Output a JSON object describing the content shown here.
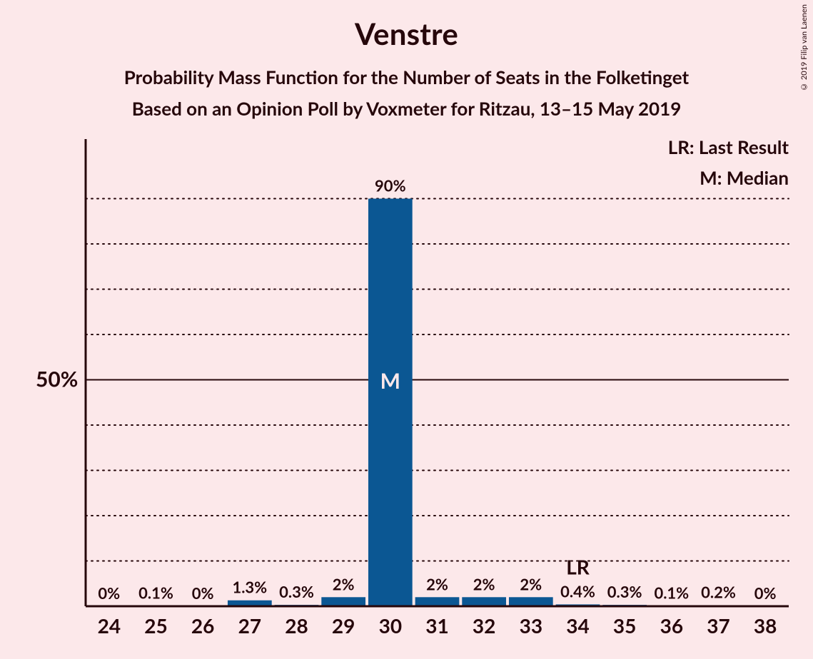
{
  "title": "Venstre",
  "subtitle1": "Probability Mass Function for the Number of Seats in the Folketinget",
  "subtitle2": "Based on an Opinion Poll by Voxmeter for Ritzau, 13–15 May 2019",
  "legend_lr": "LR: Last Result",
  "legend_m": "M: Median",
  "copyright": "© 2019 Filip van Laenen",
  "yaxis": {
    "major_label": "50%",
    "major_value": 50,
    "minor_step": 10,
    "max": 100
  },
  "chart": {
    "type": "bar",
    "categories": [
      24,
      25,
      26,
      27,
      28,
      29,
      30,
      31,
      32,
      33,
      34,
      35,
      36,
      37,
      38
    ],
    "values": [
      0,
      0.1,
      0,
      1.3,
      0.3,
      2,
      90,
      2,
      2,
      2,
      0.4,
      0.3,
      0.1,
      0.2,
      0
    ],
    "labels": [
      "0%",
      "0.1%",
      "0%",
      "1.3%",
      "0.3%",
      "2%",
      "90%",
      "2%",
      "2%",
      "2%",
      "0.4%",
      "0.3%",
      "0.1%",
      "0.2%",
      "0%"
    ],
    "bar_color": "#0b5793",
    "median_index": 6,
    "median_label": "M",
    "lr_index": 10,
    "lr_label": "LR",
    "background": "#fce8ea",
    "axis_color": "#26070b",
    "grid_color_dotted": "#26070b",
    "grid_color_solid": "#26070b",
    "label_fontsize": 22,
    "xlabel_fontsize": 28,
    "ylabel_fontsize": 30,
    "bar_width_ratio": 0.94,
    "ytick_step": 10,
    "ylim": [
      0,
      100
    ],
    "aspect_w": 1075,
    "aspect_h": 720,
    "m_color": "#fce8ea",
    "m_fontsize": 30
  }
}
